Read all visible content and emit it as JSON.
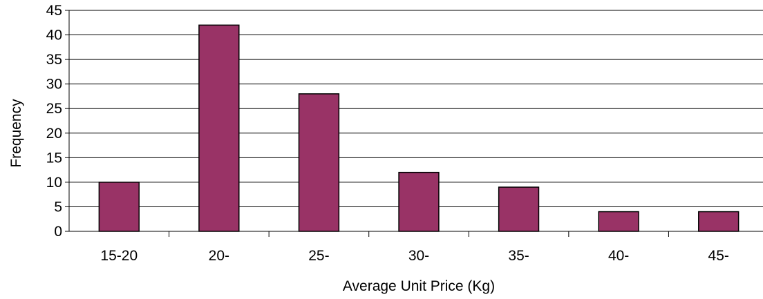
{
  "chart_data": {
    "type": "bar",
    "categories": [
      "15-20",
      "20-",
      "25-",
      "30-",
      "35-",
      "40-",
      "45-"
    ],
    "values": [
      10,
      42,
      28,
      12,
      9,
      4,
      4
    ],
    "title": "",
    "xlabel": "Average Unit Price (Kg)",
    "ylabel": "Frequency",
    "ylim": [
      0,
      45
    ],
    "yticks": [
      0,
      5,
      10,
      15,
      20,
      25,
      30,
      35,
      40,
      45
    ],
    "grid": true,
    "legend": "none",
    "bar_color": "#993366",
    "bar_outline": "#000000"
  }
}
